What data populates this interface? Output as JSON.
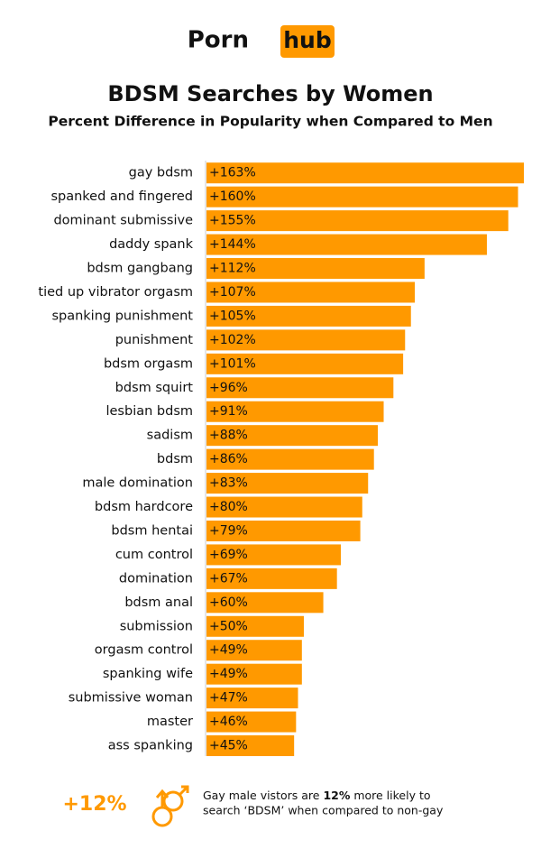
{
  "header": {
    "logo_left": "Porn",
    "logo_right": "hub"
  },
  "chart_data": {
    "type": "hbar",
    "title": "BDSM Searches by Women",
    "subtitle": "Percent Difference in Popularity when Compared to Men",
    "categories": [
      "gay bdsm",
      "spanked and fingered",
      "dominant submissive",
      "daddy spank",
      "bdsm gangbang",
      "tied up vibrator orgasm",
      "spanking punishment",
      "punishment",
      "bdsm orgasm",
      "bdsm squirt",
      "lesbian bdsm",
      "sadism",
      "bdsm",
      "male domination",
      "bdsm hardcore",
      "bdsm hentai",
      "cum control",
      "domination",
      "bdsm anal",
      "submission",
      "orgasm control",
      "spanking wife",
      "submissive woman",
      "master",
      "ass spanking"
    ],
    "values": [
      163,
      160,
      155,
      144,
      112,
      107,
      105,
      102,
      101,
      96,
      91,
      88,
      86,
      83,
      80,
      79,
      69,
      67,
      60,
      50,
      49,
      49,
      47,
      46,
      45
    ],
    "value_labels": [
      "+163%",
      "+160%",
      "+155%",
      "+144%",
      "+112%",
      "+107%",
      "+105%",
      "+102%",
      "+101%",
      "+96%",
      "+91%",
      "+88%",
      "+86%",
      "+83%",
      "+80%",
      "+79%",
      "+69%",
      "+67%",
      "+60%",
      "+50%",
      "+49%",
      "+49%",
      "+47%",
      "+46%",
      "+45%"
    ],
    "color": "#ff9900"
  },
  "footer": {
    "stat": "+12%",
    "line1": [
      "Gay male vistors are ",
      "12%",
      " more likely to"
    ],
    "line2": "search ‘BDSM’ when compared to non-gay"
  }
}
